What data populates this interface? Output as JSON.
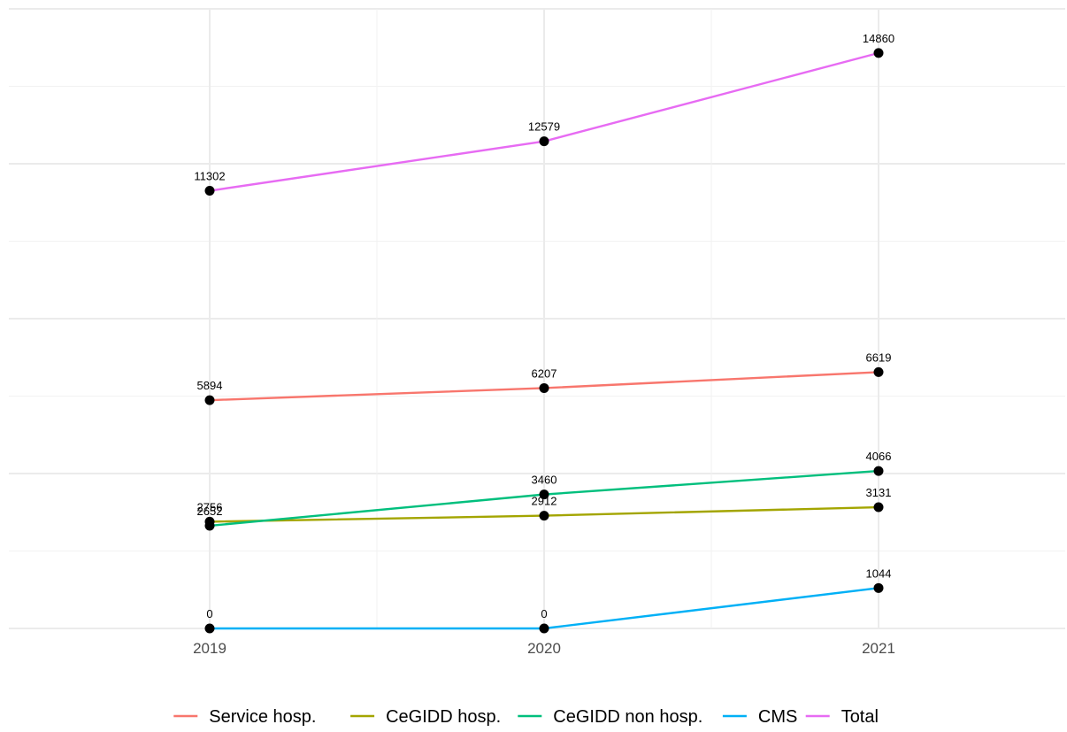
{
  "chart_data": {
    "type": "line",
    "x": [
      "2019",
      "2020",
      "2021"
    ],
    "ylim": [
      0,
      16000
    ],
    "grid": true,
    "legend_position": "bottom",
    "series": [
      {
        "name": "Service hosp.",
        "color": "#F8766D",
        "values": [
          5894,
          6207,
          6619
        ]
      },
      {
        "name": "CeGIDD hosp.",
        "color": "#A3A500",
        "values": [
          2756,
          2912,
          3131
        ]
      },
      {
        "name": "CeGIDD non hosp.",
        "color": "#00BF7D",
        "values": [
          2652,
          3460,
          4066
        ]
      },
      {
        "name": "CMS",
        "color": "#00B0F6",
        "values": [
          0,
          0,
          1044
        ]
      },
      {
        "name": "Total",
        "color": "#E76BF3",
        "values": [
          11302,
          12579,
          14860
        ]
      }
    ],
    "point_color": "#000000"
  }
}
